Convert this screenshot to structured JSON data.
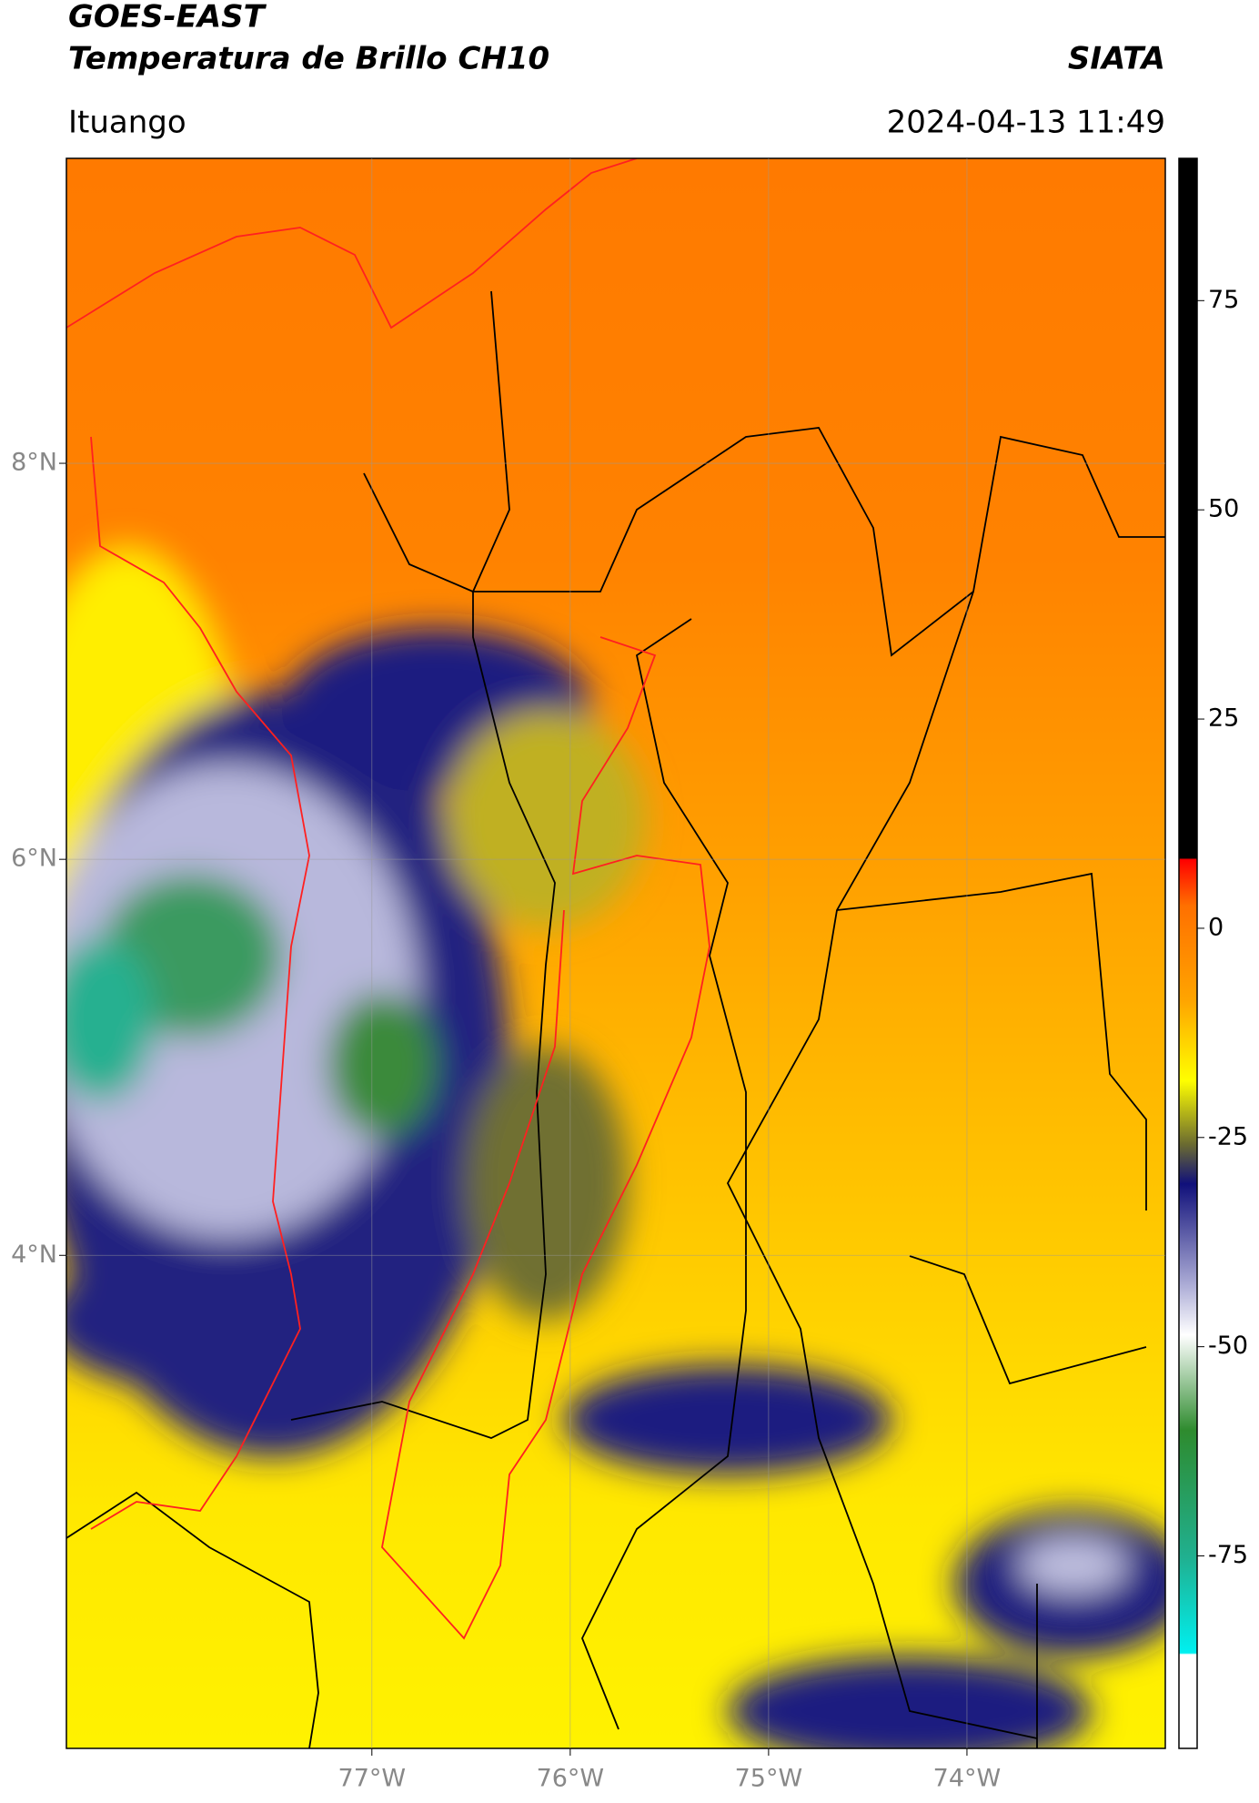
{
  "header": {
    "title_line1": "GOES-EAST",
    "title_line2": "Temperatura de Brillo CH10",
    "source": "SIATA",
    "location": "Ituango",
    "timestamp": "2024-04-13 11:49"
  },
  "map": {
    "xlim": [
      -78.54,
      -73.0
    ],
    "ylim": [
      1.51,
      9.54
    ],
    "xticks": [
      {
        "value": -77,
        "label": "77°W"
      },
      {
        "value": -76,
        "label": "76°W"
      },
      {
        "value": -75,
        "label": "75°W"
      },
      {
        "value": -74,
        "label": "74°W"
      }
    ],
    "yticks": [
      {
        "value": 8,
        "label": "8°N"
      },
      {
        "value": 6,
        "label": "6°N"
      },
      {
        "value": 4,
        "label": "4°N"
      }
    ],
    "grid": true
  },
  "colorbar": {
    "lim": [
      -98,
      92
    ],
    "ticks": [
      75,
      50,
      25,
      0,
      -25,
      -50,
      -75
    ]
  }
}
